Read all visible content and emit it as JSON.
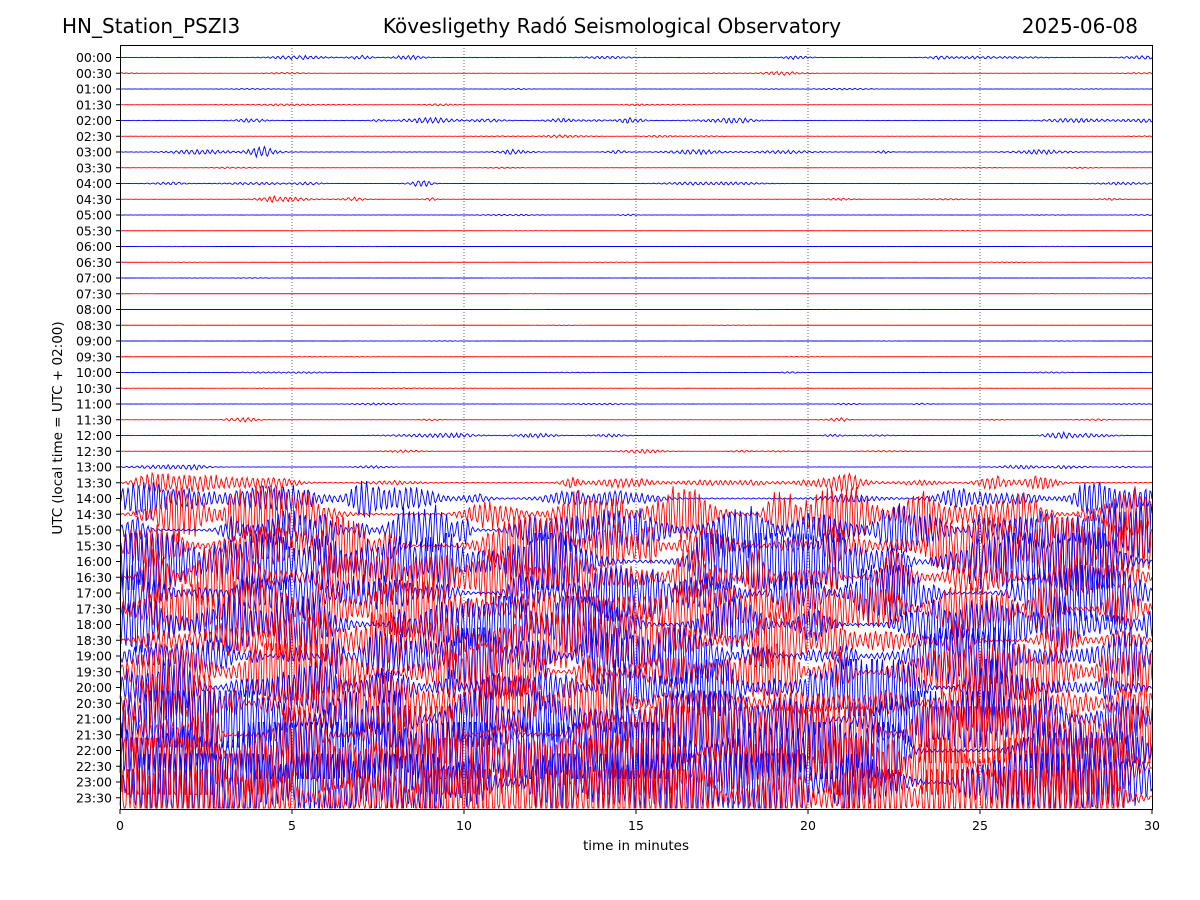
{
  "header": {
    "station": "HN_Station_PSZI3",
    "observatory": "Kövesligethy Radó Seismological Observatory",
    "date": "2025-06-08"
  },
  "chart_data": {
    "type": "line",
    "title": "Kövesligethy Radó Seismological Observatory",
    "xlabel": "time in minutes",
    "ylabel": "UTC (local time = UTC + 02:00)",
    "xlim": [
      0,
      30
    ],
    "x_ticks": [
      0,
      5,
      10,
      15,
      20,
      25,
      30
    ],
    "grid": "vertical dotted lines at 5, 10, 15, 20, 25 minutes",
    "series_colors": [
      "#0000ff",
      "#ff0000"
    ],
    "row_labels": [
      "00:00",
      "00:30",
      "01:00",
      "01:30",
      "02:00",
      "02:30",
      "03:00",
      "03:30",
      "04:00",
      "04:30",
      "05:00",
      "05:30",
      "06:00",
      "06:30",
      "07:00",
      "07:30",
      "08:00",
      "08:30",
      "09:00",
      "09:30",
      "10:00",
      "10:30",
      "11:00",
      "11:30",
      "12:00",
      "12:30",
      "13:00",
      "13:30",
      "14:00",
      "14:30",
      "15:00",
      "15:30",
      "16:00",
      "16:30",
      "17:00",
      "17:30",
      "18:00",
      "18:30",
      "19:00",
      "19:30",
      "20:00",
      "20:30",
      "21:00",
      "21:30",
      "22:00",
      "22:30",
      "23:00",
      "23:30"
    ],
    "row_activity": [
      0.35,
      0.15,
      0.12,
      0.18,
      0.45,
      0.18,
      0.4,
      0.1,
      0.3,
      0.3,
      0.12,
      0.05,
      0.04,
      0.05,
      0.05,
      0.03,
      0.03,
      0.04,
      0.05,
      0.05,
      0.12,
      0.08,
      0.15,
      0.25,
      0.35,
      0.18,
      0.3,
      0.9,
      1.4,
      2.1,
      2.2,
      2.4,
      2.8,
      2.5,
      2.4,
      2.5,
      2.4,
      2.3,
      2.4,
      2.5,
      2.4,
      2.6,
      3.0,
      3.2,
      3.4,
      3.6,
      3.4,
      3.8
    ]
  }
}
